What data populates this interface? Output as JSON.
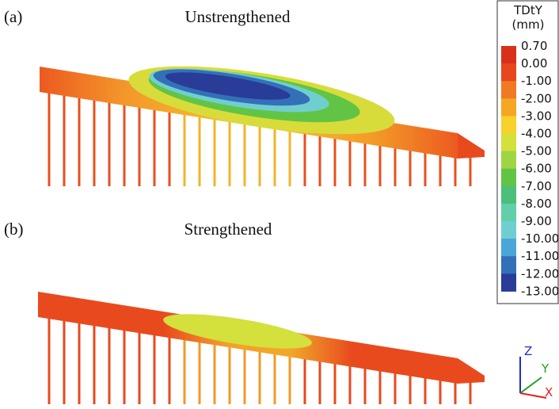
{
  "panels": [
    {
      "letter": "(a)",
      "title": "Unstrengthened"
    },
    {
      "letter": "(b)",
      "title": "Strengthened"
    }
  ],
  "legend": {
    "title": "TDtY",
    "unit": "(mm)",
    "labels": [
      "0.70",
      "0.00",
      "-1.00",
      "-2.00",
      "-3.00",
      "-4.00",
      "-5.00",
      "-6.00",
      "-7.00",
      "-8.00",
      "-9.00",
      "-10.00",
      "-11.00",
      "-12.00",
      "-13.00"
    ],
    "colors": [
      "#d9301c",
      "#e8461e",
      "#f07a24",
      "#f5a623",
      "#f6d22a",
      "#d4e03c",
      "#9fd444",
      "#62c445",
      "#4cbf7a",
      "#62cfa8",
      "#6fcfd0",
      "#4aa6d6",
      "#3470b8",
      "#283c98"
    ]
  },
  "triad": {
    "z": "Z",
    "y": "Y",
    "x": "X"
  }
}
